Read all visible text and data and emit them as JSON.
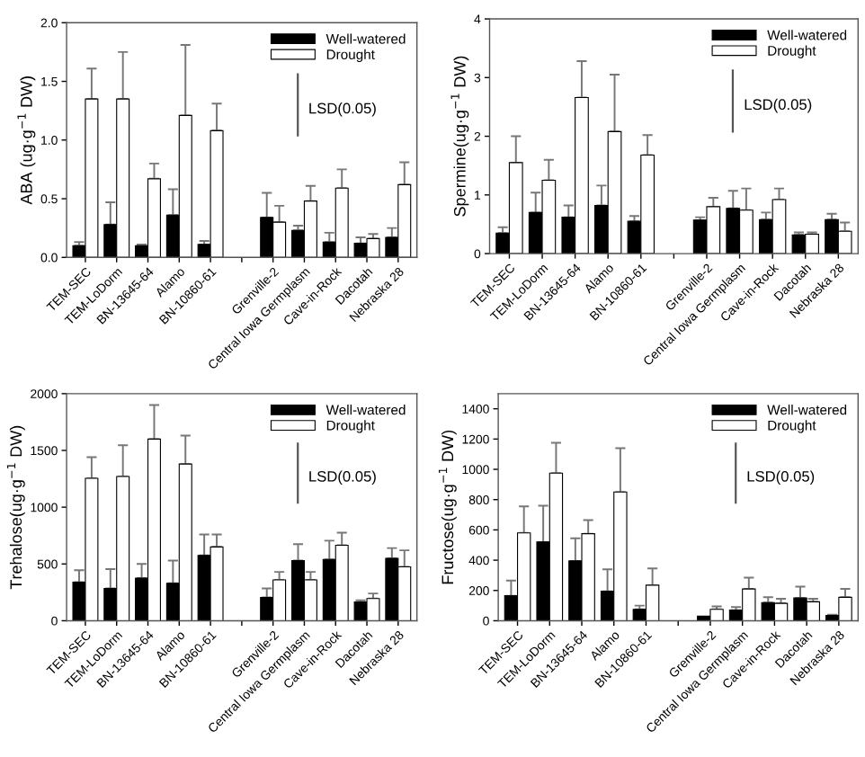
{
  "chart_data": [
    {
      "type": "bar",
      "ylabel": "ABA (ug·g$^{−1}$ DW)",
      "categories": [
        "TEM-SEC",
        "TEM-LoDorm",
        "BN-13645-64",
        "Alamo",
        "BN-10860-61",
        null,
        "Grenville-2",
        "Central Iowa Germplasm",
        "Cave-in-Rock",
        "Dacotah",
        "Nebraska 28"
      ],
      "ylim": [
        0,
        2.0
      ],
      "yticks": [
        {
          "value": 0,
          "label": "0.0"
        },
        0.5,
        {
          "value": 1,
          "label": "1.0"
        },
        1.5,
        {
          "value": 2,
          "label": "2.0"
        }
      ],
      "legend": "top right",
      "annotations": [
        "LSD(0.05)"
      ],
      "series": [
        {
          "name": "Well-watered",
          "color": "#000000",
          "values": [
            0.1,
            0.28,
            0.1,
            0.36,
            0.11,
            null,
            0.34,
            0.23,
            0.13,
            0.12,
            0.17
          ],
          "errors": [
            [
              0.1,
              0.13
            ],
            [
              0.28,
              0.47
            ],
            [
              0.1,
              0.11
            ],
            [
              0.36,
              0.58
            ],
            [
              0.11,
              0.14
            ],
            null,
            [
              0.34,
              0.55
            ],
            [
              0.23,
              0.27
            ],
            [
              0.13,
              0.21
            ],
            [
              0.12,
              0.17
            ],
            [
              0.17,
              0.25
            ]
          ]
        },
        {
          "name": "Drought",
          "color": "#ffffff",
          "values": [
            1.35,
            1.35,
            0.67,
            1.21,
            1.08,
            null,
            0.3,
            0.48,
            0.59,
            0.16,
            0.62
          ],
          "errors": [
            [
              1.35,
              1.61
            ],
            [
              1.35,
              1.75
            ],
            [
              0.67,
              0.8
            ],
            [
              1.21,
              1.81
            ],
            [
              1.08,
              1.31
            ],
            null,
            [
              0.3,
              0.44
            ],
            [
              0.48,
              0.61
            ],
            [
              0.59,
              0.75
            ],
            [
              0.16,
              0.2
            ],
            [
              0.62,
              0.81
            ]
          ]
        }
      ]
    },
    {
      "type": "bar",
      "ylabel": "Spermine(ug·g$^{−1}$ DW)",
      "categories": [
        "TEM-SEC",
        "TEM-LoDorm",
        "BN-13645-64",
        "Alamo",
        "BN-10860-61",
        null,
        "Grenville-2",
        "Central Iowa Germplasm",
        "Cave-in-Rock",
        "Dacotah",
        "Nebraska 28"
      ],
      "ylim": [
        0,
        4
      ],
      "yticks": [
        0,
        1,
        2,
        3,
        4
      ],
      "legend": "top right",
      "annotations": [
        "LSD(0.05)"
      ],
      "series": [
        {
          "name": "Well-watered",
          "color": "#000000",
          "values": [
            0.35,
            0.7,
            0.62,
            0.82,
            0.55,
            null,
            0.57,
            0.77,
            0.58,
            0.32,
            0.58
          ],
          "errors": [
            [
              0.35,
              0.45
            ],
            [
              0.7,
              1.04
            ],
            [
              0.62,
              0.82
            ],
            [
              0.82,
              1.16
            ],
            [
              0.55,
              0.64
            ],
            null,
            [
              0.57,
              0.62
            ],
            [
              0.77,
              1.07
            ],
            [
              0.58,
              0.7
            ],
            [
              0.32,
              0.36
            ],
            [
              0.58,
              0.68
            ]
          ]
        },
        {
          "name": "Drought",
          "color": "#ffffff",
          "values": [
            1.55,
            1.25,
            2.66,
            2.08,
            1.68,
            null,
            0.8,
            0.74,
            0.92,
            0.33,
            0.38
          ],
          "errors": [
            [
              1.55,
              2.0
            ],
            [
              1.25,
              1.6
            ],
            [
              2.66,
              3.28
            ],
            [
              2.08,
              3.05
            ],
            [
              1.68,
              2.02
            ],
            null,
            [
              0.8,
              0.95
            ],
            [
              0.74,
              1.11
            ],
            [
              0.92,
              1.11
            ],
            [
              0.33,
              0.36
            ],
            [
              0.38,
              0.53
            ]
          ]
        }
      ]
    },
    {
      "type": "bar",
      "ylabel": "Trehalose(ug·g$^{−1}$ DW)",
      "categories": [
        "TEM-SEC",
        "TEM-LoDorm",
        "BN-13645-64",
        "Alamo",
        "BN-10860-61",
        null,
        "Grenville-2",
        "Central Iowa Germplasm",
        "Cave-in-Rock",
        "Dacotah",
        "Nebraska 28"
      ],
      "ylim": [
        0,
        2000
      ],
      "yticks": [
        0,
        500,
        1000,
        1500,
        2000
      ],
      "legend": "top right",
      "annotations": [
        "LSD(0.05)"
      ],
      "series": [
        {
          "name": "Well-watered",
          "color": "#000000",
          "values": [
            340,
            285,
            375,
            330,
            575,
            null,
            205,
            530,
            540,
            165,
            550
          ],
          "errors": [
            [
              340,
              445
            ],
            [
              285,
              455
            ],
            [
              375,
              500
            ],
            [
              330,
              530
            ],
            [
              575,
              760
            ],
            null,
            [
              205,
              285
            ],
            [
              530,
              675
            ],
            [
              540,
              705
            ],
            [
              165,
              180
            ],
            [
              550,
              640
            ]
          ]
        },
        {
          "name": "Drought",
          "color": "#ffffff",
          "values": [
            1255,
            1270,
            1600,
            1380,
            650,
            null,
            360,
            360,
            665,
            195,
            475
          ],
          "errors": [
            [
              1255,
              1440
            ],
            [
              1270,
              1545
            ],
            [
              1600,
              1900
            ],
            [
              1380,
              1630
            ],
            [
              650,
              760
            ],
            null,
            [
              360,
              430
            ],
            [
              360,
              430
            ],
            [
              665,
              775
            ],
            [
              195,
              240
            ],
            [
              475,
              620
            ]
          ]
        }
      ]
    },
    {
      "type": "bar",
      "ylabel": "Fructose(ug·g$^{−1}$ DW)",
      "categories": [
        "TEM-SEC",
        "TEM-LoDorm",
        "BN-13645-64",
        "Alamo",
        "BN-10860-61",
        null,
        "Grenville-2",
        "Central Iowa Germplasm",
        "Cave-in-Rock",
        "Dacotah",
        "Nebraska 28"
      ],
      "ylim": [
        0,
        1500
      ],
      "yticks": [
        0,
        200,
        400,
        600,
        800,
        1000,
        1200,
        1400
      ],
      "legend": "top right",
      "annotations": [
        "LSD(0.05)"
      ],
      "series": [
        {
          "name": "Well-watered",
          "color": "#000000",
          "values": [
            165,
            520,
            395,
            195,
            75,
            null,
            30,
            70,
            120,
            150,
            35
          ],
          "errors": [
            [
              165,
              265
            ],
            [
              520,
              760
            ],
            [
              395,
              545
            ],
            [
              195,
              340
            ],
            [
              75,
              100
            ],
            null,
            null,
            [
              70,
              90
            ],
            [
              120,
              155
            ],
            [
              150,
              225
            ],
            [
              35,
              40
            ]
          ]
        },
        {
          "name": "Drought",
          "color": "#ffffff",
          "values": [
            580,
            975,
            575,
            850,
            235,
            null,
            75,
            210,
            115,
            125,
            155
          ],
          "errors": [
            [
              580,
              755
            ],
            [
              975,
              1175
            ],
            [
              575,
              665
            ],
            [
              850,
              1140
            ],
            [
              235,
              345
            ],
            null,
            [
              75,
              95
            ],
            [
              210,
              285
            ],
            [
              115,
              145
            ],
            [
              125,
              145
            ],
            [
              155,
              210
            ]
          ]
        }
      ]
    }
  ]
}
